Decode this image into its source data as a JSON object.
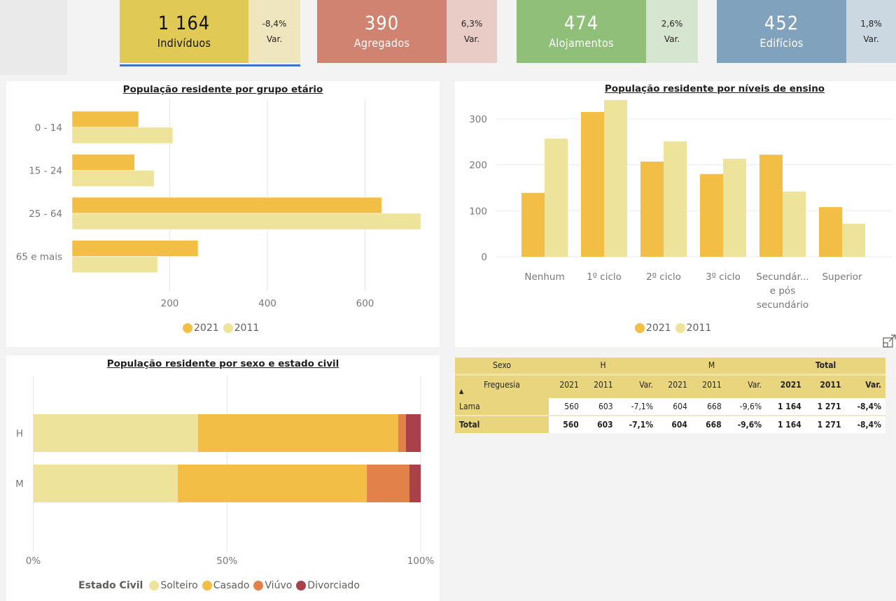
{
  "kpis": [
    {
      "value": "1 164",
      "label": "Indivíduos",
      "var_pct": "-8,4%",
      "var_label": "Var.",
      "main_color": "#e1c955",
      "var_color": "#efe6c0",
      "text_color": "#111111",
      "selected": true
    },
    {
      "value": "390",
      "label": "Agregados",
      "var_pct": "6,3%",
      "var_label": "Var.",
      "main_color": "#cf8370",
      "var_color": "#e9ccc6",
      "text_color": "#ffffff",
      "selected": false
    },
    {
      "value": "474",
      "label": "Alojamentos",
      "var_pct": "2,6%",
      "var_label": "Var.",
      "main_color": "#8fbf79",
      "var_color": "#d6e5cf",
      "text_color": "#ffffff",
      "selected": false
    },
    {
      "value": "452",
      "label": "Edifícios",
      "var_pct": "1,8%",
      "var_label": "Var.",
      "main_color": "#80a2bd",
      "var_color": "#cbd7e1",
      "text_color": "#ffffff",
      "selected": false
    }
  ],
  "colors": {
    "y2021": "#f3be45",
    "y2011": "#ede39a",
    "solteiro": "#ede39a",
    "casado": "#f3be45",
    "viuvo": "#e2814a",
    "divorciado": "#a8414a"
  },
  "chart_data": [
    {
      "type": "bar",
      "orientation": "horizontal",
      "title": "População residente por grupo etário",
      "categories": [
        "0 - 14",
        "15 - 24",
        "25 - 64",
        "65 e mais"
      ],
      "series": [
        {
          "name": "2021",
          "values": [
            136,
            128,
            634,
            258
          ]
        },
        {
          "name": "2011",
          "values": [
            206,
            168,
            714,
            175
          ]
        }
      ],
      "xlim": [
        0,
        720
      ],
      "xticks": [
        200,
        400,
        600
      ],
      "xlabel": "",
      "ylabel": "",
      "grid": true,
      "legend": "bottom-center"
    },
    {
      "type": "bar",
      "orientation": "vertical",
      "title": "População residente por níveis de ensino",
      "categories": [
        "Nenhum",
        "1º ciclo",
        "2º ciclo",
        "3º ciclo",
        "Secundár... e pós secundário",
        "Superior"
      ],
      "category_lines": [
        [
          "Nenhum"
        ],
        [
          "1º ciclo"
        ],
        [
          "2º ciclo"
        ],
        [
          "3º ciclo"
        ],
        [
          "Secundár...",
          "e pós",
          "secundário"
        ],
        [
          "Superior"
        ]
      ],
      "series": [
        {
          "name": "2021",
          "values": [
            139,
            315,
            207,
            180,
            222,
            108
          ]
        },
        {
          "name": "2011",
          "values": [
            257,
            341,
            251,
            213,
            142,
            72
          ]
        }
      ],
      "ylim": [
        0,
        340
      ],
      "yticks": [
        0,
        100,
        200,
        300
      ],
      "xlabel": "",
      "ylabel": "",
      "grid": true,
      "legend": "bottom-center"
    },
    {
      "type": "bar",
      "orientation": "horizontal",
      "stacked": "100%",
      "title": "População residente por sexo e estado civil",
      "categories": [
        "H",
        "M"
      ],
      "series": [
        {
          "name": "Solteiro",
          "values": [
            42.5,
            37.3
          ]
        },
        {
          "name": "Casado",
          "values": [
            51.7,
            48.8
          ]
        },
        {
          "name": "Viúvo",
          "values": [
            2.0,
            11.0
          ]
        },
        {
          "name": "Divorciado",
          "values": [
            3.8,
            2.9
          ]
        }
      ],
      "xlim": [
        0,
        100
      ],
      "xticks": [
        "0%",
        "50%",
        "100%"
      ],
      "legend_title": "Estado Civil",
      "grid": true,
      "legend": "bottom-center"
    }
  ],
  "matrix": {
    "header1": {
      "sexo": "Sexo",
      "h": "H",
      "m": "M",
      "total": "Total"
    },
    "header2": {
      "freguesia": "Freguesia",
      "sort_icon": "▲",
      "cols": [
        "2021",
        "2011",
        "Var.",
        "2021",
        "2011",
        "Var.",
        "2021",
        "2011",
        "Var."
      ]
    },
    "rows": [
      {
        "label": "Lama",
        "values": [
          "560",
          "603",
          "-7,1%",
          "604",
          "668",
          "-9,6%",
          "1 164",
          "1 271",
          "-8,4%"
        ]
      },
      {
        "label": "Total",
        "values": [
          "560",
          "603",
          "-7,1%",
          "604",
          "668",
          "-9,6%",
          "1 164",
          "1 271",
          "-8,4%"
        ]
      }
    ]
  }
}
